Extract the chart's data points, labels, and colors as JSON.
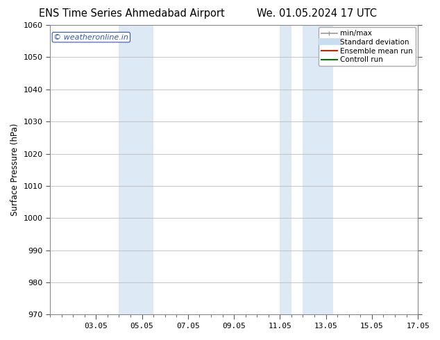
{
  "title_left": "ENS Time Series Ahmedabad Airport",
  "title_right": "We. 01.05.2024 17 UTC",
  "ylabel": "Surface Pressure (hPa)",
  "ylim": [
    970,
    1060
  ],
  "yticks": [
    970,
    980,
    990,
    1000,
    1010,
    1020,
    1030,
    1040,
    1050,
    1060
  ],
  "x_min": 1.0,
  "x_max": 17.0,
  "xtick_positions": [
    3,
    5,
    7,
    9,
    11,
    13,
    15,
    17
  ],
  "xtick_labels": [
    "03.05",
    "05.05",
    "07.05",
    "09.05",
    "11.05",
    "13.05",
    "15.05",
    "17.05"
  ],
  "shaded_regions": [
    {
      "x_start": 4.0,
      "x_end": 5.5,
      "color": "#ddeaf5"
    },
    {
      "x_start": 11.0,
      "x_end": 11.5,
      "color": "#ddeaf5"
    },
    {
      "x_start": 12.0,
      "x_end": 13.3,
      "color": "#ddeaf5"
    }
  ],
  "watermark_text": "© weatheronline.in",
  "watermark_color": "#3355bb",
  "legend_items": [
    {
      "label": "min/max",
      "color": "#999999",
      "lw": 1.2,
      "marker": "|"
    },
    {
      "label": "Standard deviation",
      "color": "#c8ddef",
      "lw": 7
    },
    {
      "label": "Ensemble mean run",
      "color": "#cc2200",
      "lw": 1.5
    },
    {
      "label": "Controll run",
      "color": "#007700",
      "lw": 1.5
    }
  ],
  "background_color": "#ffffff",
  "plot_bg_color": "#ffffff",
  "grid_color": "#bbbbbb",
  "spine_color": "#888888",
  "title_fontsize": 10.5,
  "ylabel_fontsize": 8.5,
  "tick_fontsize": 8,
  "legend_fontsize": 7.5,
  "watermark_fontsize": 8
}
